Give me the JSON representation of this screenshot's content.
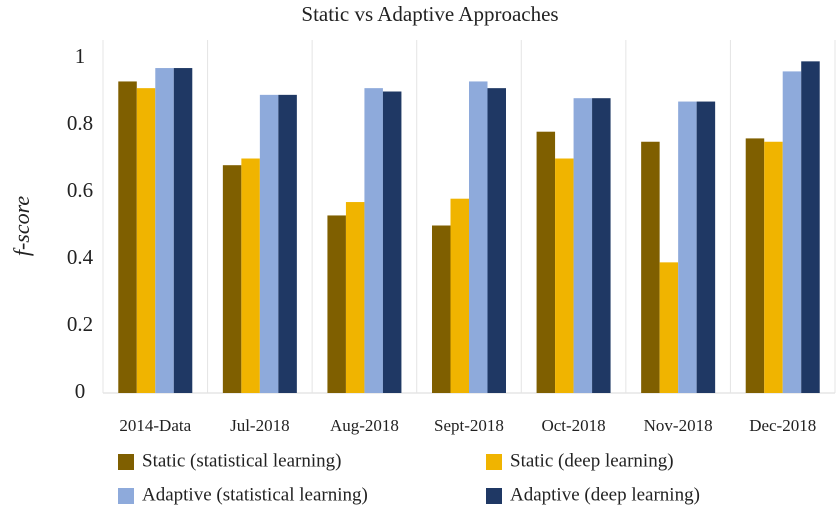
{
  "chart_data": {
    "type": "bar",
    "title": "Static vs Adaptive Approaches",
    "y_label": "f-score",
    "categories": [
      "2014-Data",
      "Jul-2018",
      "Aug-2018",
      "Sept-2018",
      "Oct-2018",
      "Nov-2018",
      "Dec-2018"
    ],
    "series": [
      {
        "name": "Static (statistical learning)",
        "color": "#7f5f00",
        "values": [
          0.93,
          0.68,
          0.53,
          0.5,
          0.78,
          0.75,
          0.76
        ]
      },
      {
        "name": "Static (deep learning)",
        "color": "#f0b400",
        "values": [
          0.91,
          0.7,
          0.57,
          0.58,
          0.7,
          0.39,
          0.75
        ]
      },
      {
        "name": "Adaptive (statistical learning)",
        "color": "#8eaadb",
        "values": [
          0.97,
          0.89,
          0.91,
          0.93,
          0.88,
          0.87,
          0.96
        ]
      },
      {
        "name": "Adaptive (deep learning)",
        "color": "#1f3864",
        "values": [
          0.97,
          0.89,
          0.9,
          0.91,
          0.88,
          0.87,
          0.99
        ]
      }
    ],
    "ylim": [
      0,
      1
    ],
    "yticks": [
      0,
      0.2,
      0.4,
      0.6,
      0.8,
      1
    ],
    "grid": true
  }
}
